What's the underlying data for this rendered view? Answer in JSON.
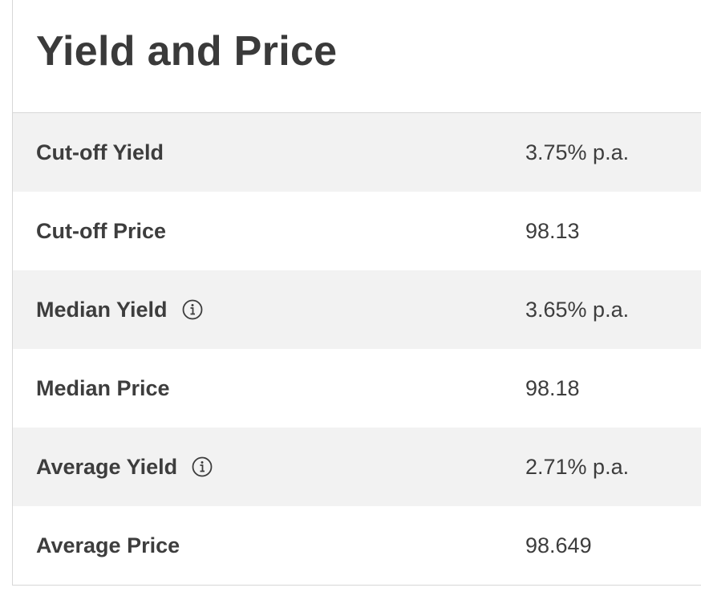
{
  "section": {
    "title": "Yield and Price"
  },
  "rows": [
    {
      "label": "Cut-off Yield",
      "value": "3.75% p.a.",
      "info": false
    },
    {
      "label": "Cut-off Price",
      "value": "98.13",
      "info": false
    },
    {
      "label": "Median Yield",
      "value": "3.65% p.a.",
      "info": true
    },
    {
      "label": "Median Price",
      "value": "98.18",
      "info": false
    },
    {
      "label": "Average Yield",
      "value": "2.71% p.a.",
      "info": true
    },
    {
      "label": "Average Price",
      "value": "98.649",
      "info": false
    }
  ],
  "icons": {
    "info": "info-circle-icon"
  },
  "colors": {
    "shaded_row": "#f2f2f2",
    "text": "#3d3d3d",
    "border": "#d7d7d7"
  }
}
